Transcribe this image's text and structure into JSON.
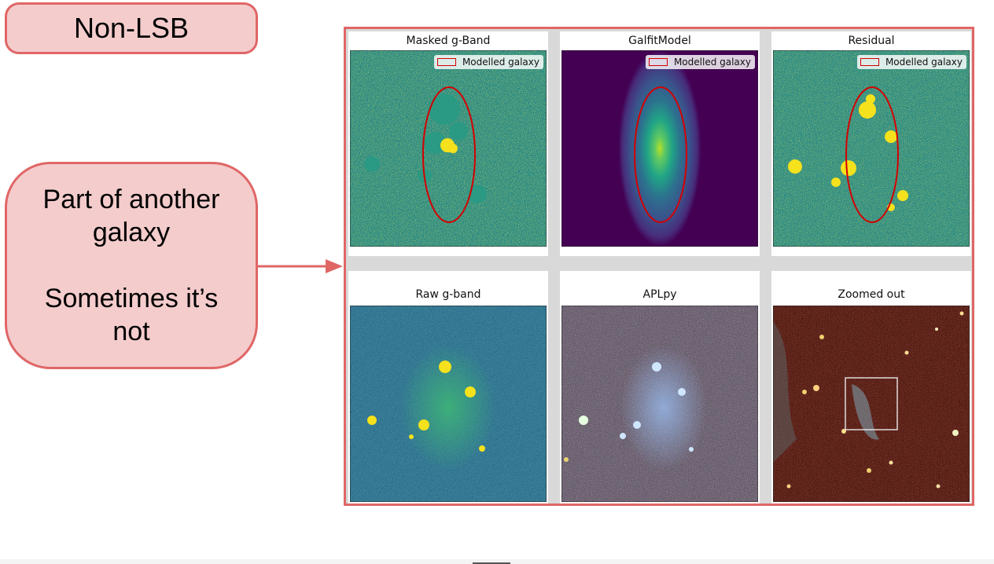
{
  "tag": {
    "text": "Non-LSB"
  },
  "note": {
    "line1": "Part of another",
    "line2": "galaxy",
    "line3": "Sometimes it’s",
    "line4": "not"
  },
  "panels": [
    {
      "title": "Masked g-Band",
      "legend": "Modelled galaxy"
    },
    {
      "title": "GalfitModel",
      "legend": "Modelled galaxy"
    },
    {
      "title": "Residual",
      "legend": "Modelled galaxy"
    },
    {
      "title": "Raw g-band"
    },
    {
      "title": "APLpy"
    },
    {
      "title": "Zoomed out"
    }
  ],
  "colors": {
    "accent_border": "#e06666",
    "accent_fill": "#f4cccc",
    "ellipse": "#d40000"
  }
}
